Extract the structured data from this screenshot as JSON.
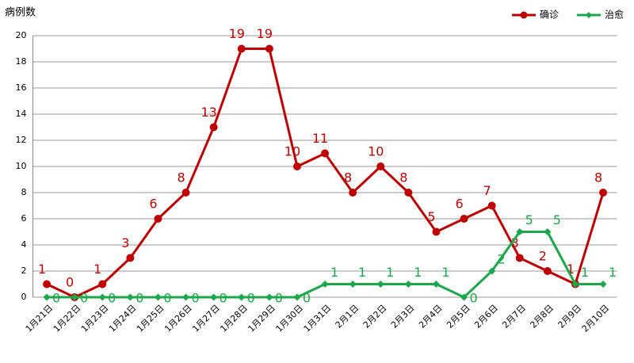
{
  "chart_data": {
    "type": "line",
    "y_label": "病例数",
    "categories": [
      "1月21日",
      "1月22日",
      "1月23日",
      "1月24日",
      "1月25日",
      "1月26日",
      "1月27日",
      "1月28日",
      "1月29日",
      "1月30日",
      "1月31日",
      "2月1日",
      "2月2日",
      "2月3日",
      "2月4日",
      "2月5日",
      "2月6日",
      "2月7日",
      "2月8日",
      "2月9日",
      "2月10日"
    ],
    "series": [
      {
        "name": "确诊",
        "color": "#c00000",
        "values": [
          1,
          0,
          1,
          3,
          6,
          8,
          13,
          19,
          19,
          10,
          11,
          8,
          10,
          8,
          5,
          6,
          7,
          3,
          2,
          1,
          8
        ]
      },
      {
        "name": "治愈",
        "color": "#1aa84a",
        "values": [
          0,
          0,
          0,
          0,
          0,
          0,
          0,
          0,
          0,
          0,
          1,
          1,
          1,
          1,
          1,
          0,
          2,
          5,
          5,
          1,
          1
        ]
      }
    ],
    "ylim": [
      0,
      20
    ],
    "yticks": [
      0,
      2,
      4,
      6,
      8,
      10,
      12,
      14,
      16,
      18,
      20
    ],
    "grid": true,
    "legend": "top-right"
  }
}
